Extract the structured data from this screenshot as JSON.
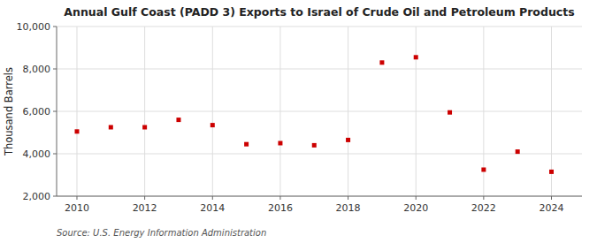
{
  "chart_data": {
    "type": "scatter",
    "title": "Annual Gulf Coast (PADD 3) Exports to Israel of Crude Oil and Petroleum Products",
    "ylabel": "Thousand Barrels",
    "source": "Source: U.S. Energy Information Administration",
    "x": [
      2010,
      2011,
      2012,
      2013,
      2014,
      2015,
      2016,
      2017,
      2018,
      2019,
      2020,
      2021,
      2022,
      2023,
      2024
    ],
    "values": [
      5050,
      5250,
      5250,
      5600,
      5350,
      4450,
      4500,
      4400,
      4650,
      8300,
      8550,
      5950,
      3250,
      4100,
      3150
    ],
    "color": "#cc0000",
    "marker": "square",
    "xlim": [
      2009.4,
      2024.9
    ],
    "xticks": [
      2010,
      2012,
      2014,
      2016,
      2018,
      2020,
      2022,
      2024
    ],
    "ylim": [
      2000,
      10000
    ],
    "yticks": [
      {
        "value": 2000,
        "label": "2,000"
      },
      {
        "value": 4000,
        "label": "4,000"
      },
      {
        "value": 6000,
        "label": "6,000"
      },
      {
        "value": 8000,
        "label": "8,000"
      },
      {
        "value": 10000,
        "label": "10,000"
      }
    ],
    "grid": true
  }
}
